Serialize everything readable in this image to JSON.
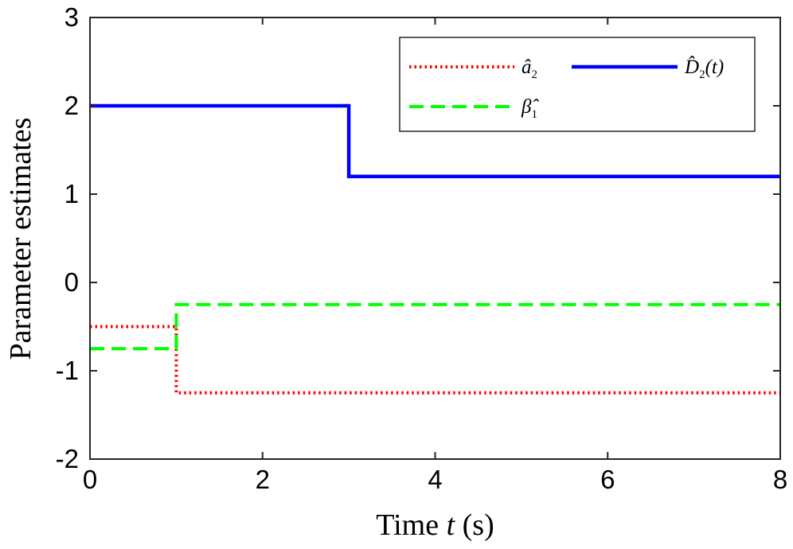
{
  "chart_data": {
    "type": "line",
    "xlabel_parts": [
      "Time ",
      "t",
      " (s)"
    ],
    "ylabel": "Parameter estimates",
    "xlim": [
      0,
      8
    ],
    "ylim": [
      -2,
      3
    ],
    "xticks": [
      0,
      2,
      4,
      6,
      8
    ],
    "yticks": [
      -2,
      -1,
      0,
      1,
      2,
      3
    ],
    "grid": false,
    "legend_position": "top-right",
    "series": [
      {
        "key": "a2",
        "name": "â₂",
        "label_main": "â",
        "label_sub": "2",
        "label_suffix": "",
        "color": "#ff0000",
        "style": "dotted",
        "x": [
          0,
          1,
          1,
          8
        ],
        "y": [
          -0.5,
          -0.5,
          -1.25,
          -1.25
        ]
      },
      {
        "key": "D2",
        "name": "D̂₂(t)",
        "label_main": "D̂",
        "label_sub": "2",
        "label_suffix": "(t)",
        "color": "#0000ff",
        "style": "solid",
        "x": [
          0,
          3,
          3,
          8
        ],
        "y": [
          2,
          2,
          1.2,
          1.2
        ]
      },
      {
        "key": "beta1",
        "name": "β̂₁",
        "label_main": "β̂",
        "label_sub": "1",
        "label_suffix": "",
        "color": "#00ff00",
        "style": "dashed",
        "x": [
          0,
          1,
          1,
          8
        ],
        "y": [
          -0.75,
          -0.75,
          -0.25,
          -0.25
        ]
      }
    ]
  }
}
